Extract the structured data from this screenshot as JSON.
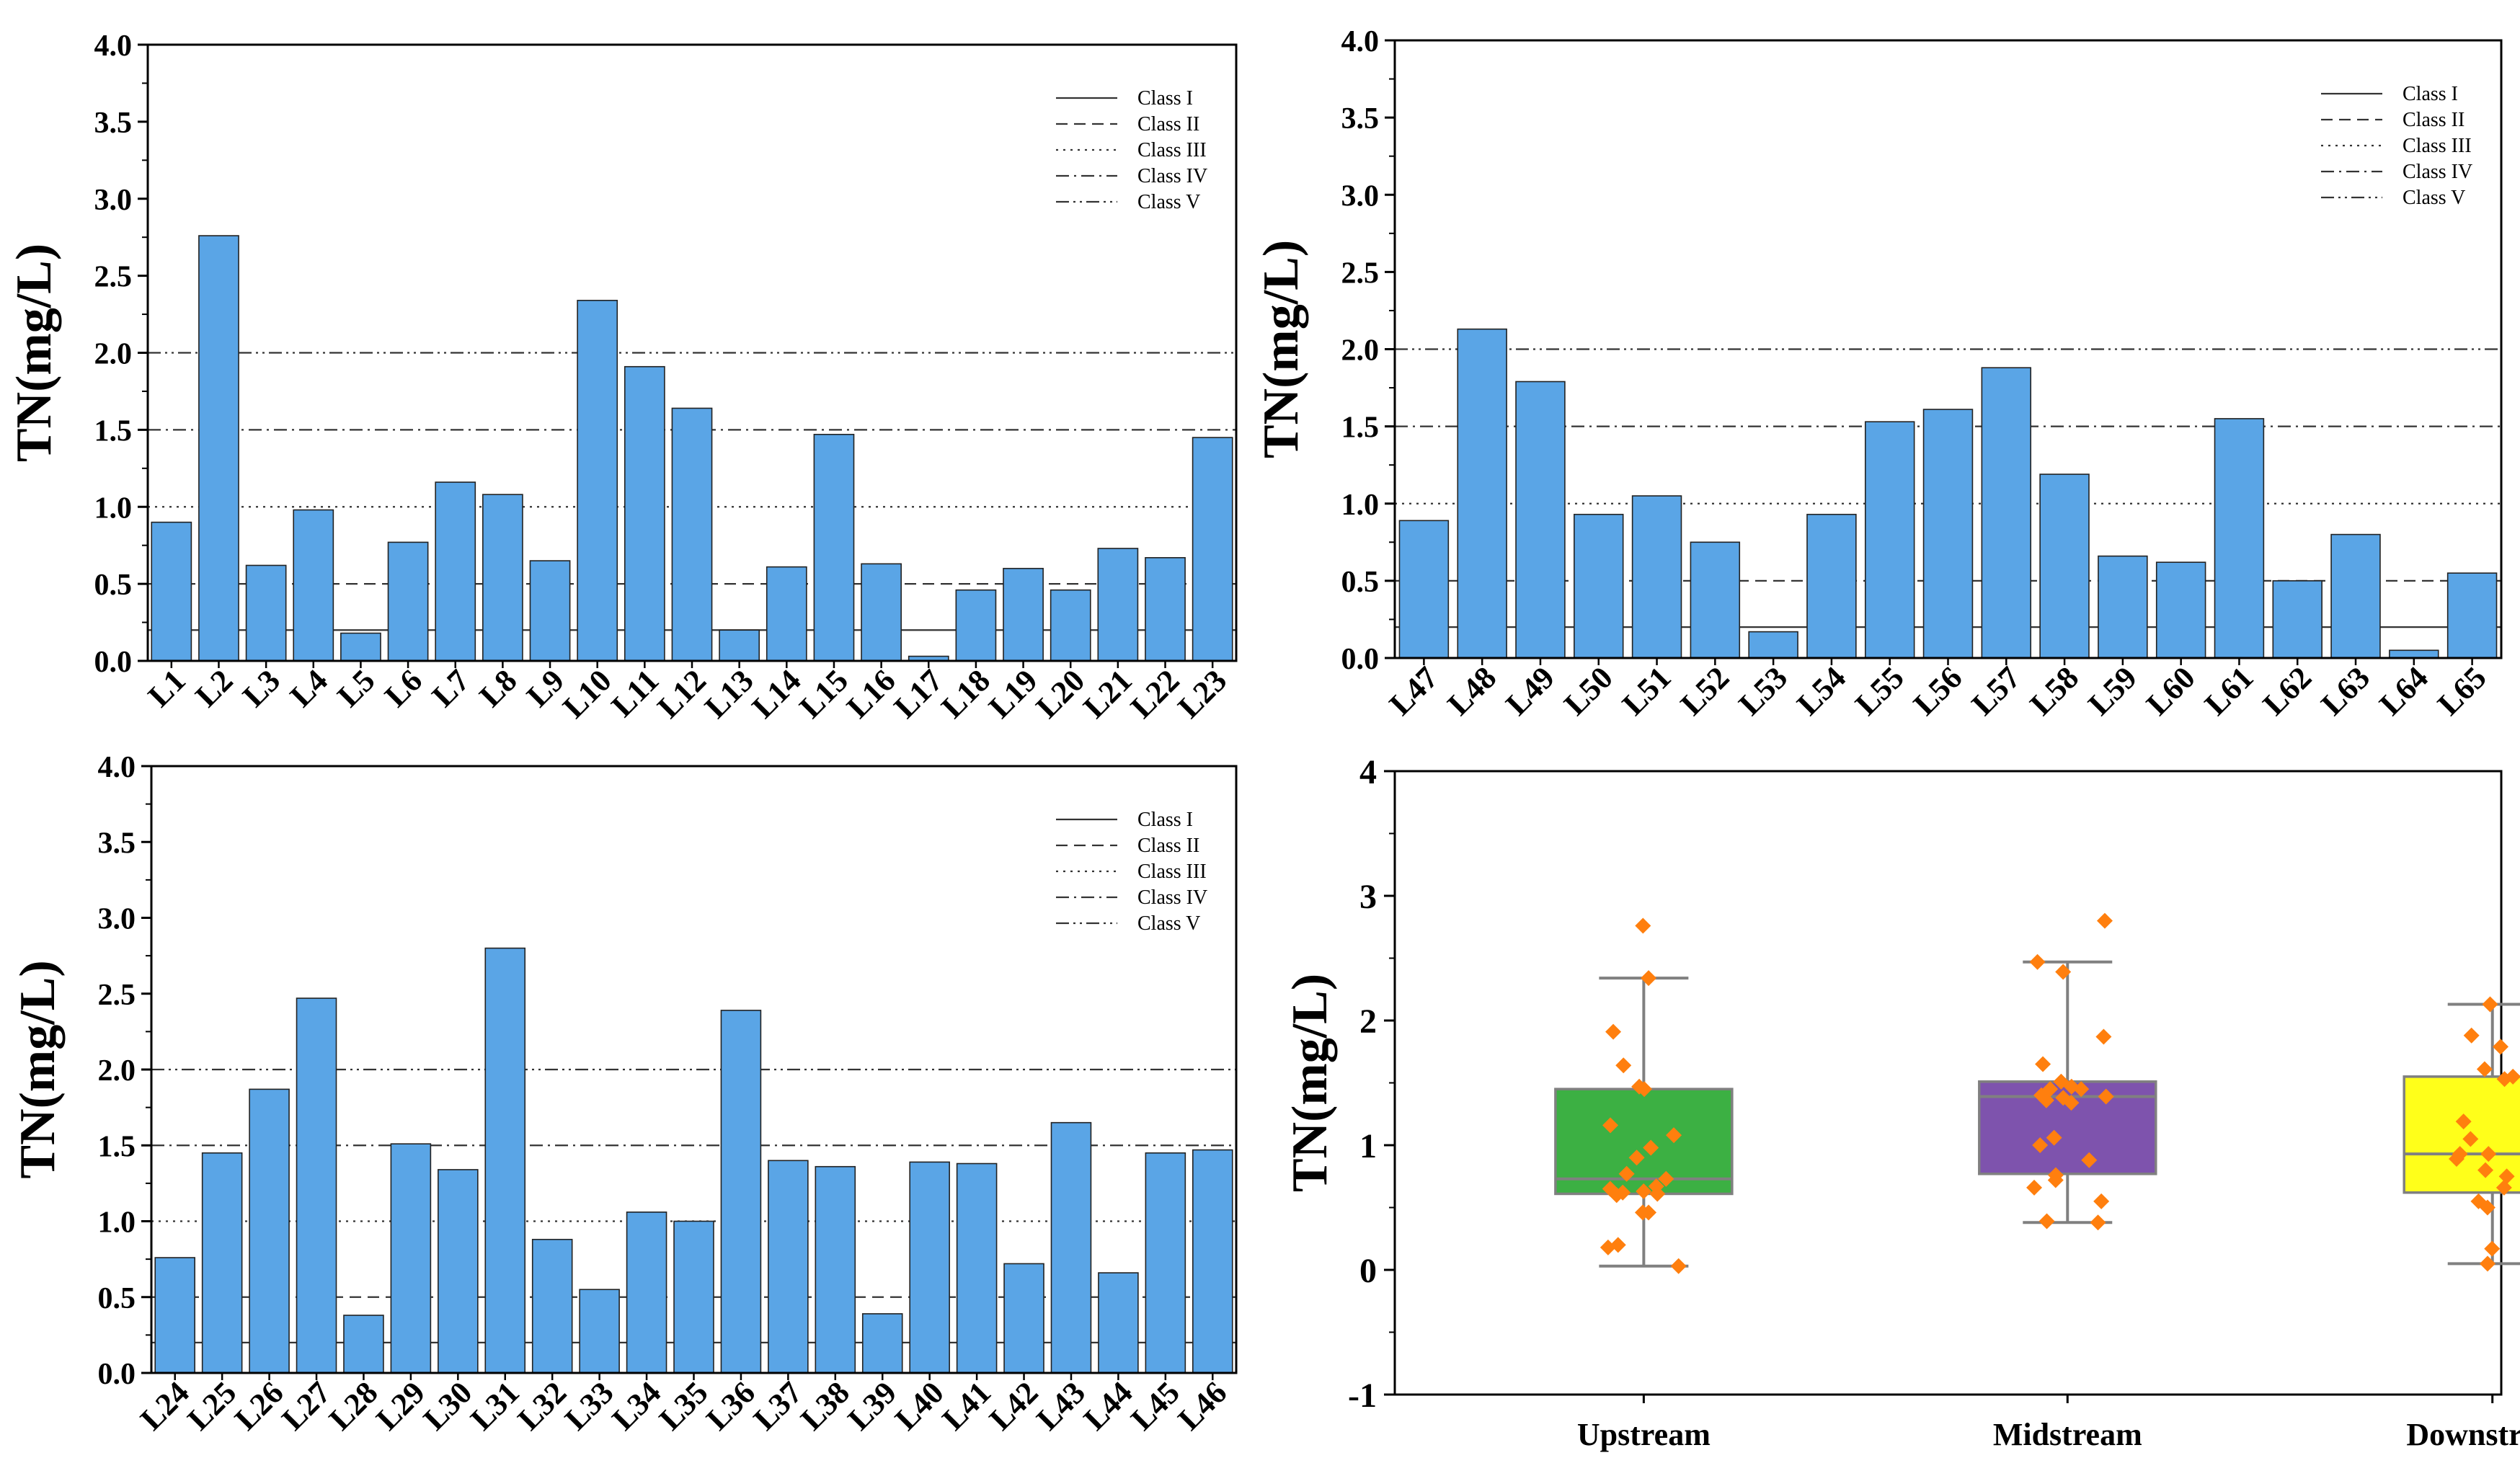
{
  "chart_data": [
    {
      "type": "bar",
      "title": "",
      "xlabel": "",
      "ylabel": "TN(mg/L)",
      "ylim": [
        0,
        4
      ],
      "yticks": [
        "0.0",
        "0.5",
        "1.0",
        "1.5",
        "2.0",
        "2.5",
        "3.0",
        "3.5",
        "4.0"
      ],
      "categories": [
        "L1",
        "L2",
        "L3",
        "L4",
        "L5",
        "L6",
        "L7",
        "L8",
        "L9",
        "L10",
        "L11",
        "L12",
        "L13",
        "L14",
        "L15",
        "L16",
        "L17",
        "L18",
        "L19",
        "L20",
        "L21",
        "L22",
        "L23"
      ],
      "values": [
        0.9,
        2.76,
        0.62,
        0.98,
        0.18,
        0.77,
        1.16,
        1.08,
        0.65,
        2.34,
        1.91,
        1.64,
        0.2,
        0.61,
        1.47,
        0.63,
        0.03,
        0.46,
        0.6,
        0.46,
        0.73,
        0.67,
        1.45
      ],
      "bar_color": "#5aa5e6",
      "legend_position": "top-right",
      "reference_lines": [
        {
          "name": "Class I",
          "value": 0.2,
          "style": "solid"
        },
        {
          "name": "Class II",
          "value": 0.5,
          "style": "dashed"
        },
        {
          "name": "Class III",
          "value": 1.0,
          "style": "dotted"
        },
        {
          "name": "Class IV",
          "value": 1.5,
          "style": "dashdot"
        },
        {
          "name": "Class V",
          "value": 2.0,
          "style": "dashdotdot"
        }
      ]
    },
    {
      "type": "bar",
      "title": "",
      "xlabel": "",
      "ylabel": "TN(mg/L)",
      "ylim": [
        0,
        4
      ],
      "yticks": [
        "0.0",
        "0.5",
        "1.0",
        "1.5",
        "2.0",
        "2.5",
        "3.0",
        "3.5",
        "4.0"
      ],
      "categories": [
        "L47",
        "L48",
        "L49",
        "L50",
        "L51",
        "L52",
        "L53",
        "L54",
        "L55",
        "L56",
        "L57",
        "L58",
        "L59",
        "L60",
        "L61",
        "L62",
        "L63",
        "L64",
        "L65"
      ],
      "values": [
        0.89,
        2.13,
        1.79,
        0.93,
        1.05,
        0.75,
        0.17,
        0.93,
        1.53,
        1.61,
        1.88,
        1.19,
        0.66,
        0.62,
        1.55,
        0.5,
        0.8,
        0.05,
        0.55
      ],
      "bar_color": "#5aa5e6",
      "legend_position": "top-right",
      "reference_lines": [
        {
          "name": "Class I",
          "value": 0.2,
          "style": "solid"
        },
        {
          "name": "Class II",
          "value": 0.5,
          "style": "dashed"
        },
        {
          "name": "Class III",
          "value": 1.0,
          "style": "dotted"
        },
        {
          "name": "Class IV",
          "value": 1.5,
          "style": "dashdot"
        },
        {
          "name": "Class V",
          "value": 2.0,
          "style": "dashdotdot"
        }
      ]
    },
    {
      "type": "bar",
      "title": "",
      "xlabel": "",
      "ylabel": "TN(mg/L)",
      "ylim": [
        0,
        4
      ],
      "yticks": [
        "0.0",
        "0.5",
        "1.0",
        "1.5",
        "2.0",
        "2.5",
        "3.0",
        "3.5",
        "4.0"
      ],
      "categories": [
        "L24",
        "L25",
        "L26",
        "L27",
        "L28",
        "L29",
        "L30",
        "L31",
        "L32",
        "L33",
        "L34",
        "L35",
        "L36",
        "L37",
        "L38",
        "L39",
        "L40",
        "L41",
        "L42",
        "L43",
        "L44",
        "L45",
        "L46"
      ],
      "values": [
        0.76,
        1.45,
        1.87,
        2.47,
        0.38,
        1.51,
        1.34,
        2.8,
        0.88,
        0.55,
        1.06,
        1.0,
        2.39,
        1.4,
        1.36,
        0.39,
        1.39,
        1.38,
        0.72,
        1.65,
        0.66,
        1.45,
        1.47
      ],
      "bar_color": "#5aa5e6",
      "legend_position": "top-right",
      "reference_lines": [
        {
          "name": "Class I",
          "value": 0.2,
          "style": "solid"
        },
        {
          "name": "Class II",
          "value": 0.5,
          "style": "dashed"
        },
        {
          "name": "Class III",
          "value": 1.0,
          "style": "dotted"
        },
        {
          "name": "Class IV",
          "value": 1.5,
          "style": "dashdot"
        },
        {
          "name": "Class V",
          "value": 2.0,
          "style": "dashdotdot"
        }
      ]
    },
    {
      "type": "box",
      "title": "",
      "xlabel": "",
      "ylabel": "TN(mg/L)",
      "ylim": [
        -1,
        4
      ],
      "yticks": [
        "-1",
        "0",
        "1",
        "2",
        "3",
        "4"
      ],
      "categories": [
        "Upstream",
        "Midstream",
        "Downstream"
      ],
      "boxes": [
        {
          "name": "Upstream",
          "color": "#3cb043",
          "min": 0.03,
          "q1": 0.61,
          "median": 0.73,
          "q3": 1.45,
          "max": 2.34,
          "points": [
            2.76,
            2.34,
            1.91,
            1.64,
            1.47,
            1.45,
            1.16,
            1.08,
            0.98,
            0.9,
            0.77,
            0.73,
            0.67,
            0.65,
            0.63,
            0.62,
            0.61,
            0.6,
            0.46,
            0.46,
            0.2,
            0.18,
            0.03
          ]
        },
        {
          "name": "Midstream",
          "color": "#7e53ad",
          "min": 0.38,
          "q1": 0.77,
          "median": 1.39,
          "q3": 1.51,
          "max": 2.47,
          "points": [
            2.8,
            2.47,
            2.39,
            1.87,
            1.65,
            1.51,
            1.47,
            1.45,
            1.45,
            1.4,
            1.39,
            1.38,
            1.36,
            1.34,
            1.06,
            1.0,
            0.88,
            0.76,
            0.72,
            0.66,
            0.55,
            0.39,
            0.38
          ]
        },
        {
          "name": "Downstream",
          "color": "#ffff1a",
          "min": 0.05,
          "q1": 0.62,
          "median": 0.93,
          "q3": 1.55,
          "max": 2.13,
          "points": [
            2.13,
            1.88,
            1.79,
            1.61,
            1.55,
            1.53,
            1.19,
            1.05,
            0.93,
            0.93,
            0.89,
            0.8,
            0.75,
            0.66,
            0.62,
            0.55,
            0.5,
            0.17,
            0.05
          ]
        }
      ],
      "point_color": "#ff7f0e"
    }
  ]
}
